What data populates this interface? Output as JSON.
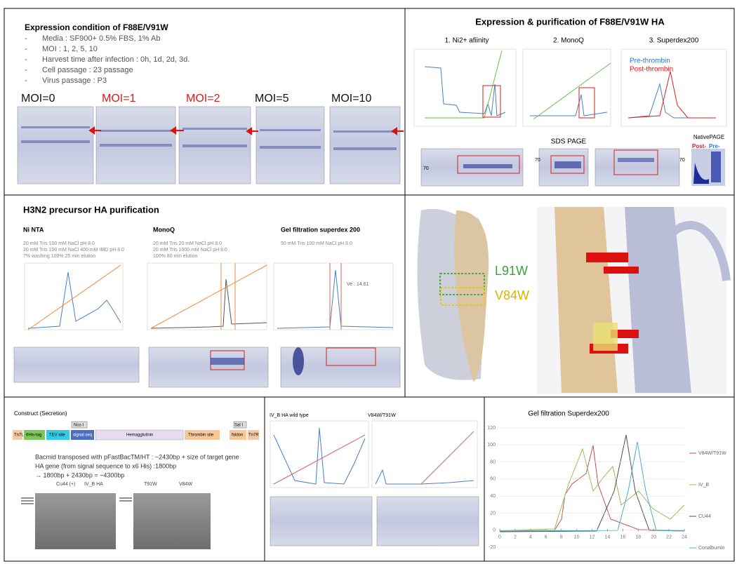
{
  "expression": {
    "title": "Expression condition of F88E/V91W",
    "bullets": [
      "Media : SF900+ 0.5% FBS, 1% Ab",
      "MOI : 1, 2, 5, 10",
      "Harvest time after infection : 0h, 1d, 2d, 3d.",
      "Cell passage : 23 passage",
      "Virus passage : P3"
    ],
    "moi": [
      "MOI=0",
      "MOI=1",
      "MOI=2",
      "MOI=5",
      "MOI=10"
    ]
  },
  "purification": {
    "title": "Expression & purification of F88E/V91W HA",
    "steps": [
      "1. Ni2+ afiinity",
      "2. MonoQ",
      "3. Superdex200"
    ],
    "legend": [
      "Pre-thrombin",
      "Post-thrombin"
    ],
    "sds_page": "SDS PAGE",
    "native_page": "NativePAGE",
    "native_lanes": [
      "Post-",
      "Pre-"
    ],
    "marker": "70"
  },
  "h3n2": {
    "title": "H3N2 precursor HA purification",
    "columns": [
      {
        "title": "Ni NTA",
        "notes": [
          "20 mM Tris 100 mM NaCl pH 8.0",
          "20 mM Tris 100 mM NaCl 400 mM IMD pH 8.0",
          "7% washing 100% 25 min elution"
        ]
      },
      {
        "title": "MonoQ",
        "notes": [
          "20 mM Tris 20 mM NaCl pH 8.0",
          "20 mM Tris 1000 mM NaCl pH 8.0",
          "100% 80 min elution"
        ]
      },
      {
        "title": "Gel filtration superdex 200",
        "notes": [
          "50 mM Tris 100 mM NaCl pH 8.0"
        ]
      }
    ],
    "ve": "Ve : 14.61"
  },
  "structure": {
    "labels": [
      "L91W",
      "V84W"
    ]
  },
  "construct": {
    "title": "Construct (Secretion)",
    "elements": [
      "Tn7L",
      "6His-tag",
      "TEV site",
      "signal seq",
      "Hemagglutinin",
      "Thrombin site",
      "foldon",
      "Tn7R"
    ],
    "sites": [
      "Nco I",
      "Sal I"
    ],
    "lines": [
      "Bacmid transposed with pFastBacTM/HT : ~2430bp + size of target gene",
      "HA gene (from signal sequence to x6 His) :1800bp",
      "→ 1800bp + 2430bp = ~4300bp"
    ],
    "gel_labels": [
      "Cu44 (+)",
      "IV_B HA",
      "T91W",
      "V84W"
    ]
  },
  "wildtype": {
    "labels": [
      "IV_B HA wild type",
      "V84W/T91W"
    ]
  },
  "gel_filtration": {
    "title": "Gel filtration Superdex200",
    "yticks": [
      -20,
      0,
      20,
      40,
      60,
      80,
      100,
      120
    ],
    "xticks": [
      0,
      2,
      4,
      6,
      8,
      10,
      12,
      14,
      16,
      18,
      20,
      22,
      24
    ],
    "legend": [
      "V84W/T91W",
      "IV_B",
      "CU44",
      "Conalbumin"
    ]
  }
}
